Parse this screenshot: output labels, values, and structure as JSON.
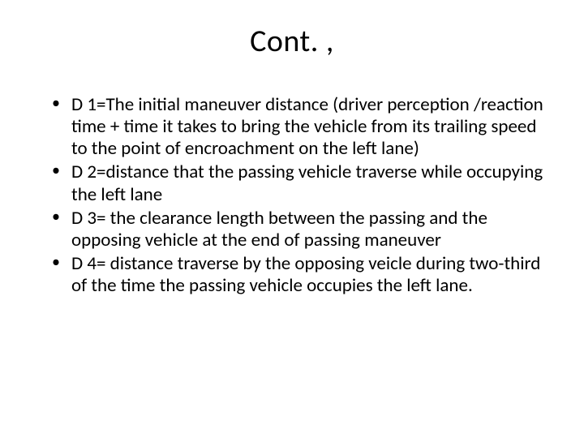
{
  "title": "Cont. ,",
  "background_color": "#ffffff",
  "text_color": "#000000",
  "title_fontsize": 38,
  "body_fontsize": 23,
  "font_family": "Calibri",
  "bullets": [
    "D 1=The initial maneuver distance (driver perception /reaction time  + time it takes to bring the vehicle from its trailing speed to the point of encroachment on the left lane)",
    "D 2=distance that the passing vehicle traverse while occupying the left lane",
    "D 3= the clearance length between the passing and the opposing vehicle at the end of passing maneuver",
    "D 4= distance traverse by the opposing veicle  during two-third of the time the passing vehicle occupies the left lane."
  ]
}
